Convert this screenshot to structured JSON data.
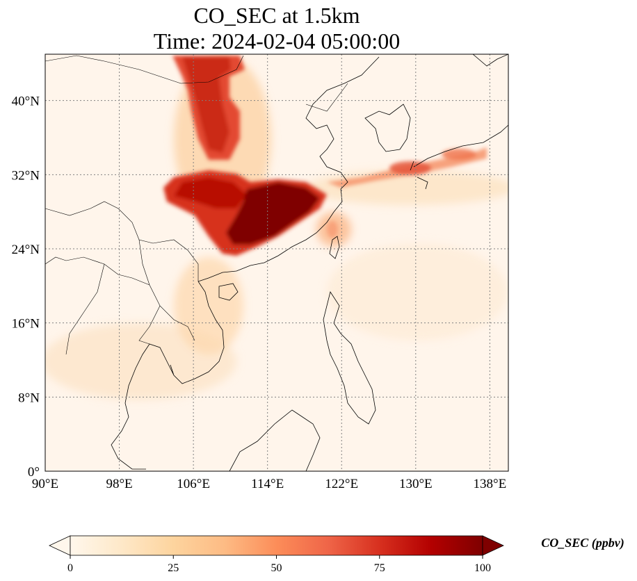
{
  "title": {
    "line1": "CO_SEC at 1.5km",
    "line2": "Time: 2024-02-04 05:00:00"
  },
  "map": {
    "lon_range": [
      90,
      140
    ],
    "lat_range": [
      0,
      45
    ],
    "x_ticks": [
      {
        "value": 90,
        "label": "90°E"
      },
      {
        "value": 98,
        "label": "98°E"
      },
      {
        "value": 106,
        "label": "106°E"
      },
      {
        "value": 114,
        "label": "114°E"
      },
      {
        "value": 122,
        "label": "122°E"
      },
      {
        "value": 130,
        "label": "130°E"
      },
      {
        "value": 138,
        "label": "138°E"
      }
    ],
    "y_ticks": [
      {
        "value": 0,
        "label": "0°"
      },
      {
        "value": 8,
        "label": "8°N"
      },
      {
        "value": 16,
        "label": "16°N"
      },
      {
        "value": 24,
        "label": "24°N"
      },
      {
        "value": 32,
        "label": "32°N"
      },
      {
        "value": 40,
        "label": "40°N"
      }
    ],
    "gridlines": true,
    "colormap": "OrRd",
    "colors": {
      "background": "#fff5eb",
      "grid": "#808080",
      "coast": "#000000"
    }
  },
  "colorbar": {
    "label": "CO_SEC (ppbv)",
    "min": 0,
    "max": 100,
    "extend": "both",
    "ticks": [
      {
        "value": 0,
        "label": "0"
      },
      {
        "value": 25,
        "label": "25"
      },
      {
        "value": 50,
        "label": "50"
      },
      {
        "value": 75,
        "label": "75"
      },
      {
        "value": 100,
        "label": "100"
      }
    ],
    "stops": [
      "#fff7ec",
      "#fee8c8",
      "#fdd49e",
      "#fdbb84",
      "#fc8d59",
      "#ef6548",
      "#d7301f",
      "#b30000",
      "#7f0000"
    ]
  }
}
